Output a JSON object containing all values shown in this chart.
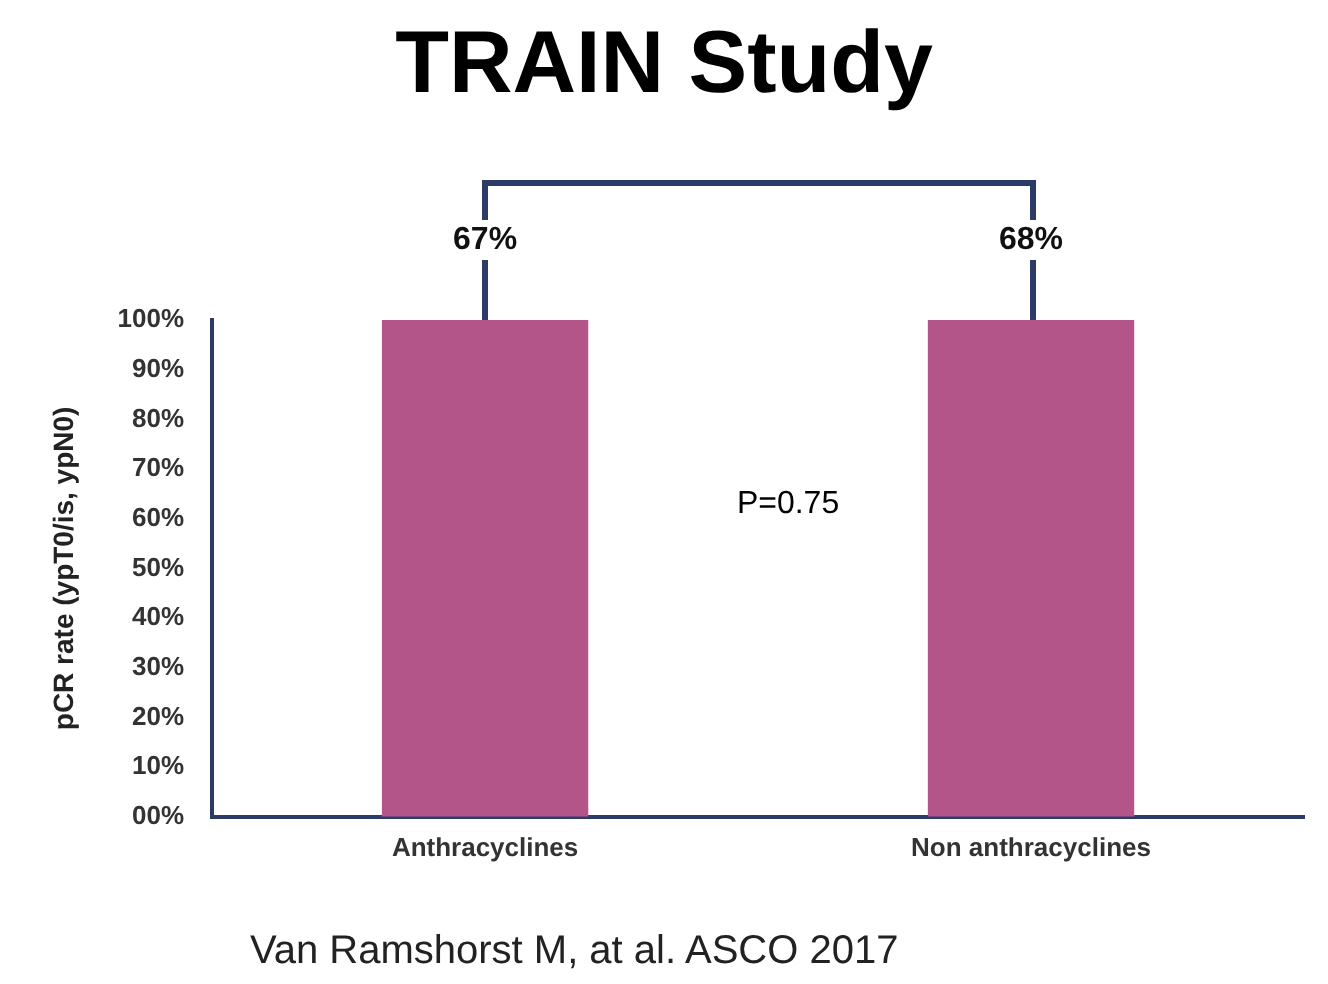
{
  "chart_data": {
    "type": "bar",
    "title": "TRAIN Study",
    "ylabel": "pCR rate (ypT0/is, ypN0)",
    "categories": [
      "Anthracyclines",
      "Non anthracyclines"
    ],
    "values": [
      100,
      100
    ],
    "color": "#b4558a",
    "ylim": [
      0,
      100
    ],
    "yticks": [
      {
        "value": 0,
        "label": "00%"
      },
      {
        "value": 10,
        "label": "10%"
      },
      {
        "value": 20,
        "label": "20%"
      },
      {
        "value": 30,
        "label": "30%"
      },
      {
        "value": 40,
        "label": "40%"
      },
      {
        "value": 50,
        "label": "50%"
      },
      {
        "value": 60,
        "label": "60%"
      },
      {
        "value": 70,
        "label": "70%"
      },
      {
        "value": 80,
        "label": "80%"
      },
      {
        "value": 90,
        "label": "90%"
      },
      {
        "value": 100,
        "label": "100%"
      }
    ],
    "grid": false,
    "legend": false,
    "annotations": [
      "67%",
      "68%",
      "P=0.75",
      "Van Ramshorst M, at al. ASCO 2017"
    ]
  }
}
